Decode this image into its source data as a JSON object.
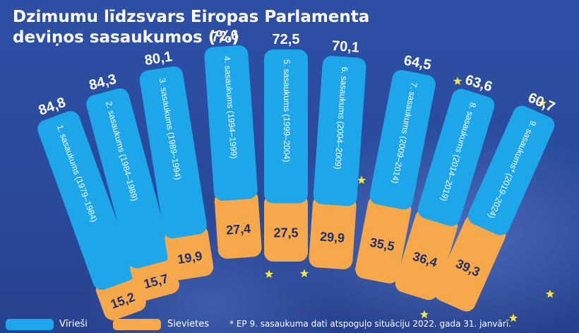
{
  "title_line1": "Dzimumu līdzsvars Eiropas Parlamenta",
  "title_line2": "deviņos sasaukumos (%)",
  "legend": {
    "men": "Vīrieši",
    "women": "Sievietes"
  },
  "footnote": "* EP 9. sasaukuma dati atspoguļo situāciju 2022. gada 31. janvārī.",
  "colors": {
    "men": "#1da6ea",
    "women": "#f6a84a",
    "background": "#2a4a9e",
    "stars": "#f7e33a"
  },
  "chart_data": {
    "type": "bar",
    "categories": [
      "1. sasaukums (1979–1984)",
      "2. sasaukums (1984–1989)",
      "3. sasaukums (1989–1994)",
      "4. sasaukums (1994–1999)",
      "5. sasaukums (1999–2004)",
      "6. sasaukums (2004–2009)",
      "7. sasaukums (2009–2014)",
      "8. sasaukums (2014–2019)",
      "9. sasaukums* (2019–2024)"
    ],
    "series": [
      {
        "name": "Vīrieši",
        "values": [
          "84,8",
          "84,3",
          "80,1",
          "72,6",
          "72,5",
          "70,1",
          "64,5",
          "63,6",
          "60,7"
        ]
      },
      {
        "name": "Sievietes",
        "values": [
          "15,2",
          "15,7",
          "19,9",
          "27,4",
          "27,5",
          "29,9",
          "35,5",
          "36,4",
          "39,3"
        ]
      }
    ],
    "stacked": true,
    "ylim": [
      0,
      100
    ]
  }
}
